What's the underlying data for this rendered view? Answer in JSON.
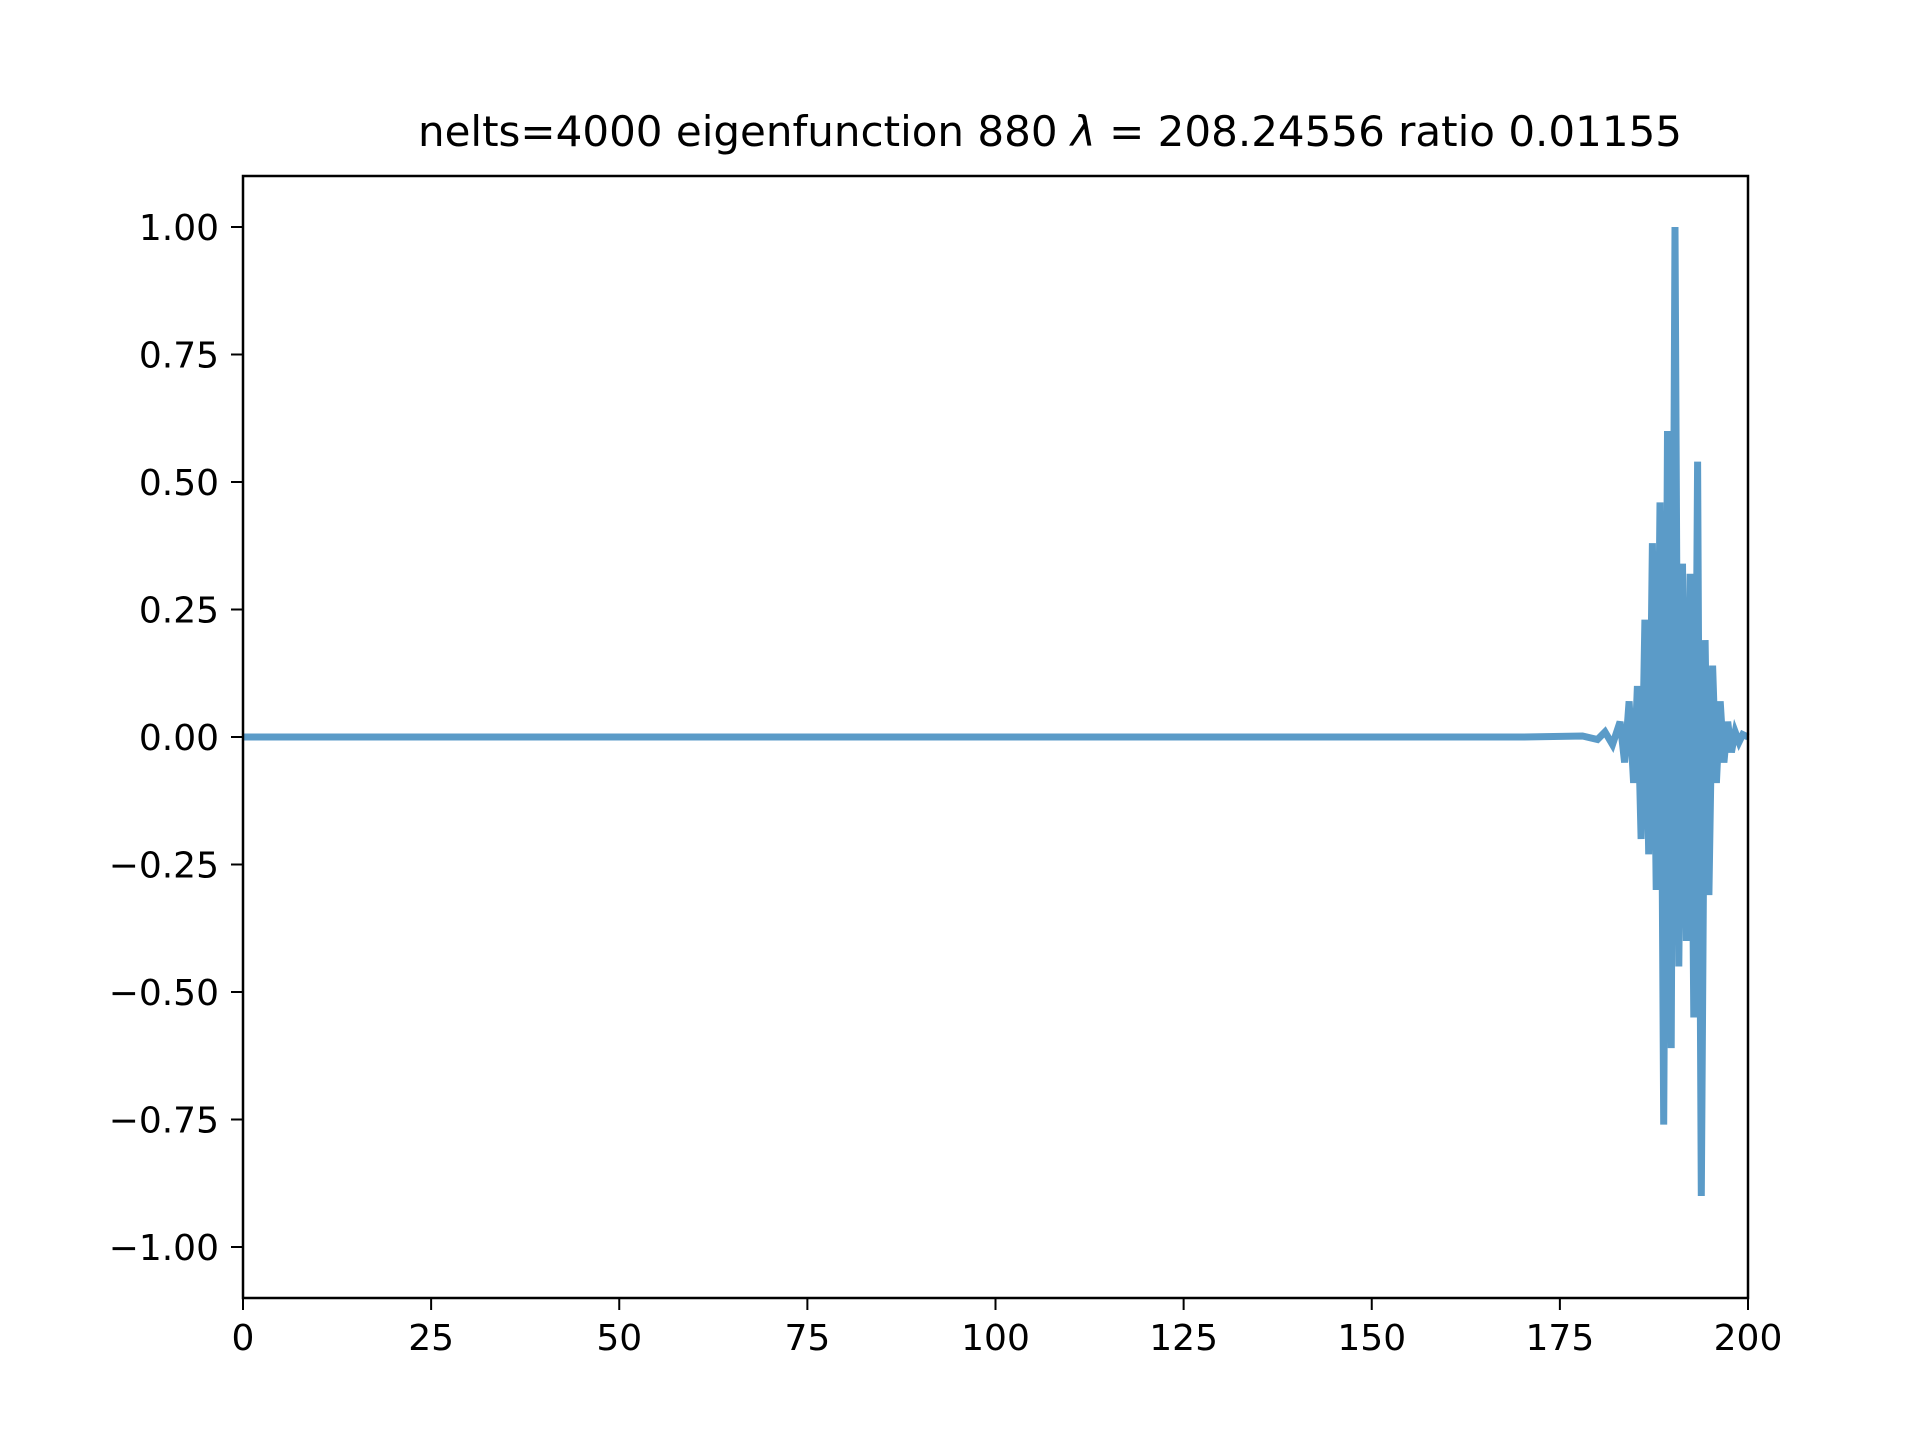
{
  "chart_data": {
    "type": "line",
    "title": "nelts=4000  eigenfunction 880  λ = 208.24556 ratio 0.01155",
    "title_parts": {
      "prefix": "nelts=4000  eigenfunction 880  ",
      "symbol": "λ",
      "suffix": " = 208.24556 ratio 0.01155"
    },
    "xlabel": "",
    "ylabel": "",
    "xlim": [
      0,
      200
    ],
    "ylim": [
      -1.1,
      1.1
    ],
    "x_ticks": [
      0,
      25,
      50,
      75,
      100,
      125,
      150,
      175,
      200
    ],
    "x_tick_labels": [
      "0",
      "25",
      "50",
      "75",
      "100",
      "125",
      "150",
      "175",
      "200"
    ],
    "y_ticks": [
      1.0,
      0.75,
      0.5,
      0.25,
      0.0,
      -0.25,
      -0.5,
      -0.75,
      -1.0
    ],
    "y_tick_labels": [
      "1.00",
      "0.75",
      "0.50",
      "0.25",
      "0.00",
      "−0.25",
      "−0.50",
      "−0.75",
      "−1.00"
    ],
    "grid": false,
    "line_color": "#5b9bc8",
    "series": [
      {
        "x": [
          0,
          170,
          178,
          180,
          181,
          182,
          183,
          183.6,
          184.2,
          184.8,
          185.3,
          185.8,
          186.3,
          186.8,
          187.3,
          187.8,
          188.3,
          188.8,
          189.3,
          189.8,
          190.3,
          190.8,
          191.3,
          191.8,
          192.3,
          192.8,
          193.3,
          193.8,
          194.3,
          194.8,
          195.3,
          195.8,
          196.3,
          196.8,
          197.3,
          197.8,
          198.3,
          198.8,
          199.3,
          200
        ],
        "y": [
          0,
          0,
          0.002,
          -0.005,
          0.01,
          -0.015,
          0.03,
          -0.05,
          0.07,
          -0.09,
          0.1,
          -0.2,
          0.23,
          -0.23,
          0.38,
          -0.3,
          0.46,
          -0.76,
          0.6,
          -0.61,
          1.0,
          -0.45,
          0.34,
          -0.4,
          0.32,
          -0.55,
          0.54,
          -0.9,
          0.19,
          -0.31,
          0.14,
          -0.09,
          0.07,
          -0.05,
          0.03,
          -0.03,
          0.01,
          -0.01,
          0.005,
          0
        ]
      }
    ]
  }
}
